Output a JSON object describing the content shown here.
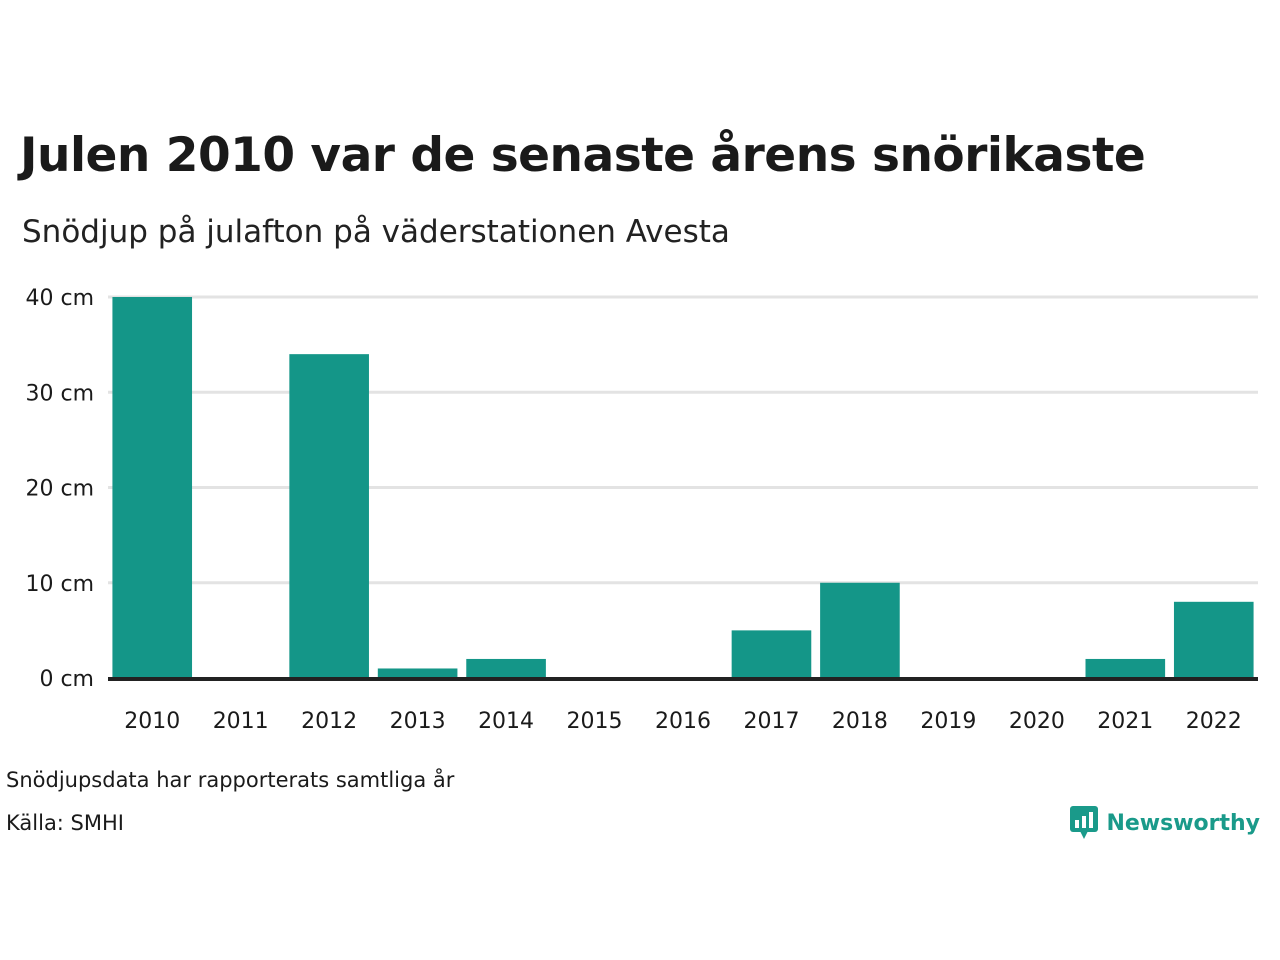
{
  "colors": {
    "bar": "#149688",
    "grid": "#e3e3e3",
    "baseline": "#222222",
    "brand": "#1a9a8a"
  },
  "footer": {
    "note": "Snödjupsdata har rapporterats samtliga år",
    "source": "Källa: SMHI",
    "brand_name": "Newsworthy",
    "brand_icon": "bar-chart-speech-bubble-icon"
  },
  "chart_data": {
    "type": "bar",
    "title": "Julen 2010 var de senaste årens snörikaste",
    "subtitle": "Snödjup på julafton på väderstationen Avesta",
    "xlabel": "",
    "ylabel": "",
    "categories": [
      "2010",
      "2011",
      "2012",
      "2013",
      "2014",
      "2015",
      "2016",
      "2017",
      "2018",
      "2019",
      "2020",
      "2021",
      "2022"
    ],
    "values": [
      40,
      0,
      34,
      1,
      2,
      0,
      0,
      5,
      10,
      0,
      0,
      2,
      8
    ],
    "ylim": [
      0,
      40
    ],
    "yticks": [
      0,
      10,
      20,
      30,
      40
    ],
    "ytick_labels": [
      "0 cm",
      "10 cm",
      "20 cm",
      "30 cm",
      "40 cm"
    ],
    "grid": true,
    "legend": "none"
  }
}
